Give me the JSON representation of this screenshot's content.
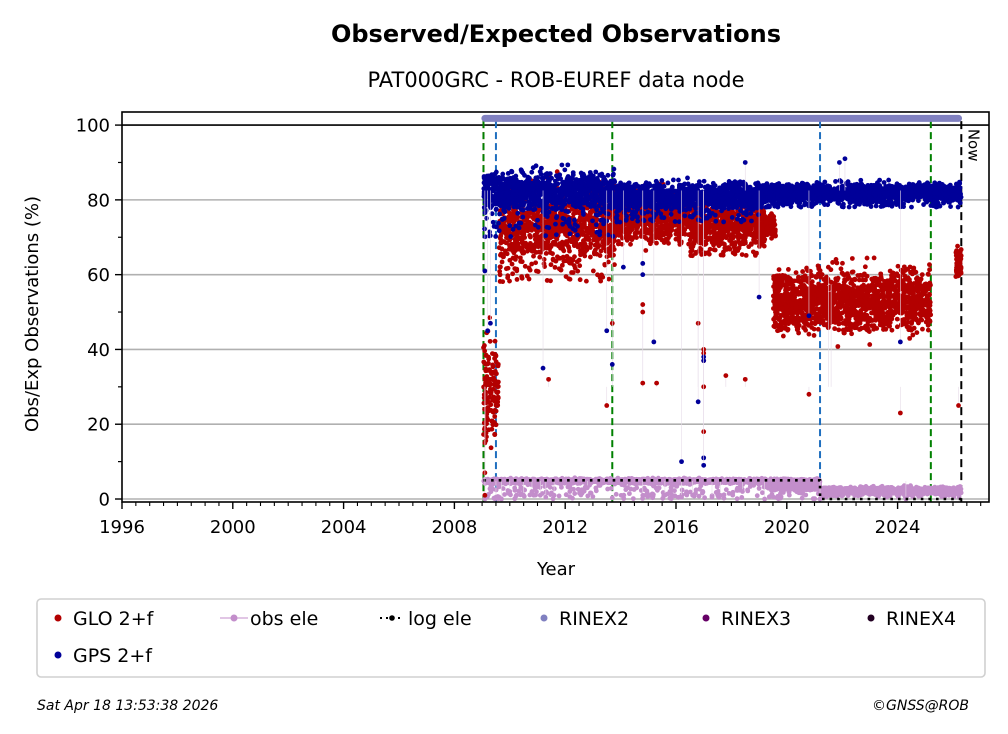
{
  "chart_data": {
    "type": "scatter",
    "title": "Observed/Expected Observations",
    "subtitle": "PAT000GRC - ROB-EUREF data node",
    "xlabel": "Year",
    "ylabel": "Obs/Exp Observations (%)",
    "xlim": [
      1996,
      2027.3
    ],
    "ylim": [
      -0.8,
      103.5
    ],
    "x_ticks": [
      1996,
      2000,
      2004,
      2008,
      2012,
      2016,
      2020,
      2024
    ],
    "x_tick_labels": [
      "1996",
      "2000",
      "2004",
      "2008",
      "2012",
      "2016",
      "2020",
      "2024"
    ],
    "y_ticks": [
      0,
      20,
      40,
      60,
      80,
      100
    ],
    "y_tick_labels": [
      "0",
      "20",
      "40",
      "60",
      "80",
      "100"
    ],
    "grid": "horizontal",
    "reference_line_y": 100,
    "now_label": "Now",
    "vertical_markers": [
      {
        "name": "station-start-red",
        "x": 2009.05,
        "color": "#cc0000",
        "style": "dashed"
      },
      {
        "name": "station-start-green",
        "x": 2009.05,
        "color": "#008000",
        "style": "dashed"
      },
      {
        "name": "equipment-change-blue-1",
        "x": 2009.5,
        "color": "#1f6fbf",
        "style": "dashed"
      },
      {
        "name": "equipment-change-green-1",
        "x": 2013.7,
        "color": "#008000",
        "style": "dashed"
      },
      {
        "name": "equipment-change-blue-2",
        "x": 2021.2,
        "color": "#1f6fbf",
        "style": "dashed"
      },
      {
        "name": "equipment-change-green-2",
        "x": 2025.2,
        "color": "#008000",
        "style": "dashed"
      },
      {
        "name": "now",
        "x": 2026.3,
        "color": "#000000",
        "style": "dashed"
      }
    ],
    "series": [
      {
        "name": "GPS 2+f",
        "color": "#000099",
        "segments": [
          {
            "x": [
              2009.05,
              2013.8
            ],
            "center": 82.5,
            "spread": 2.5,
            "tail_low": 70
          },
          {
            "x": [
              2013.8,
              2019.0
            ],
            "center": 81.0,
            "spread": 1.8,
            "tail_low": 74
          },
          {
            "x": [
              2019.0,
              2026.3
            ],
            "center": 82.0,
            "spread": 1.2,
            "tail_low": 78
          }
        ],
        "outliers": [
          [
            2009.1,
            61
          ],
          [
            2009.3,
            47
          ],
          [
            2009.2,
            45
          ],
          [
            2011.2,
            35
          ],
          [
            2013.5,
            45
          ],
          [
            2013.7,
            36
          ],
          [
            2014.1,
            62
          ],
          [
            2014.8,
            60
          ],
          [
            2014.8,
            63
          ],
          [
            2015.2,
            42
          ],
          [
            2016.2,
            10
          ],
          [
            2016.8,
            26
          ],
          [
            2017.0,
            37
          ],
          [
            2017.0,
            38
          ],
          [
            2017.0,
            11
          ],
          [
            2017.0,
            9
          ],
          [
            2018.5,
            90
          ],
          [
            2019.0,
            54
          ],
          [
            2020.8,
            49
          ],
          [
            2021.9,
            90
          ],
          [
            2022.1,
            91
          ],
          [
            2024.1,
            42
          ]
        ]
      },
      {
        "name": "GLO 2+f",
        "color": "#b30000",
        "segments": [
          {
            "x": [
              2009.05,
              2009.6
            ],
            "center": 30,
            "spread": 7,
            "tail_low": 20
          },
          {
            "x": [
              2009.6,
              2013.8
            ],
            "center": 74,
            "spread": 5,
            "tail_low": 58
          },
          {
            "x": [
              2013.8,
              2016.5
            ],
            "center": 76,
            "spread": 3,
            "tail_low": 68
          },
          {
            "x": [
              2016.5,
              2019.2
            ],
            "center": 74,
            "spread": 3.5,
            "tail_low": 65
          },
          {
            "x": [
              2019.2,
              2019.6
            ],
            "center": 73,
            "spread": 1.5,
            "tail_low": 70
          },
          {
            "x": [
              2019.5,
              2025.2
            ],
            "center": 53.5,
            "spread": 4,
            "tail_low": 45
          },
          {
            "x": [
              2026.1,
              2026.3
            ],
            "center": 63,
            "spread": 2,
            "tail_low": 60
          }
        ],
        "outliers": [
          [
            2009.1,
            19
          ],
          [
            2009.1,
            15
          ],
          [
            2009.1,
            7
          ],
          [
            2009.1,
            1
          ],
          [
            2011.4,
            32
          ],
          [
            2013.5,
            25
          ],
          [
            2013.7,
            47
          ],
          [
            2014.8,
            52
          ],
          [
            2014.8,
            50
          ],
          [
            2014.8,
            31
          ],
          [
            2015.3,
            31
          ],
          [
            2016.8,
            47
          ],
          [
            2017.0,
            40
          ],
          [
            2017.0,
            39
          ],
          [
            2017.0,
            37
          ],
          [
            2017.0,
            18
          ],
          [
            2017.0,
            30
          ],
          [
            2017.8,
            33
          ],
          [
            2018.5,
            32
          ],
          [
            2020.8,
            28
          ],
          [
            2021.5,
            62
          ],
          [
            2021.6,
            58
          ],
          [
            2024.1,
            23
          ],
          [
            2026.2,
            25
          ]
        ]
      },
      {
        "name": "obs ele",
        "color": "#c38ecb",
        "segments": [
          {
            "x": [
              2009.05,
              2021.2
            ],
            "center": 4.8,
            "spread": 0.3,
            "tail_low": 0
          },
          {
            "x": [
              2019.5,
              2021.2
            ],
            "center": 3.5,
            "spread": 0.6,
            "tail_low": 2.5
          },
          {
            "x": [
              2021.2,
              2026.3
            ],
            "center": 2.2,
            "spread": 0.5,
            "tail_low": 0.5
          }
        ],
        "outliers": [
          [
            2009.1,
            0
          ],
          [
            2009.5,
            0.5
          ],
          [
            2009.7,
            0
          ],
          [
            2010.0,
            2
          ],
          [
            2010.5,
            1
          ],
          [
            2010.8,
            2
          ],
          [
            2011.1,
            1
          ],
          [
            2011.3,
            0.5
          ],
          [
            2011.6,
            1
          ],
          [
            2012.8,
            3
          ],
          [
            2014.8,
            1
          ],
          [
            2015.6,
            1
          ],
          [
            2016.2,
            0.5
          ],
          [
            2016.6,
            1
          ],
          [
            2017.3,
            0.5
          ],
          [
            2017.6,
            1
          ],
          [
            2018.4,
            2
          ],
          [
            2019.2,
            0
          ],
          [
            2021.2,
            0
          ],
          [
            2024.3,
            0
          ]
        ]
      },
      {
        "name": "log ele",
        "color": "#000000",
        "steps": [
          [
            2009.05,
            5
          ],
          [
            2021.2,
            5
          ],
          [
            2021.2,
            0
          ],
          [
            2026.3,
            0
          ]
        ]
      },
      {
        "name": "RINEX2",
        "color": "#8080c0",
        "bar": {
          "x": [
            2009.1,
            2026.2
          ],
          "y": 101.8
        }
      },
      {
        "name": "RINEX3",
        "color": "#660066"
      },
      {
        "name": "RINEX4",
        "color": "#220022"
      }
    ],
    "legend": {
      "placement": "bottom",
      "entries": [
        {
          "label": "GLO 2+f",
          "marker": "dot",
          "color": "#b30000"
        },
        {
          "label": "obs ele",
          "marker": "line-dot",
          "color": "#c38ecb"
        },
        {
          "label": "log ele",
          "marker": "dotted-line-dot",
          "color": "#000000"
        },
        {
          "label": "RINEX2",
          "marker": "dot",
          "color": "#8080c0"
        },
        {
          "label": "RINEX3",
          "marker": "dot",
          "color": "#660066"
        },
        {
          "label": "RINEX4",
          "marker": "dot",
          "color": "#220022"
        },
        {
          "label": "GPS 2+f",
          "marker": "dot",
          "color": "#000099"
        }
      ]
    }
  },
  "footer": {
    "timestamp": "Sat Apr 18 13:53:38 2026",
    "copyright": "©GNSS@ROB"
  }
}
